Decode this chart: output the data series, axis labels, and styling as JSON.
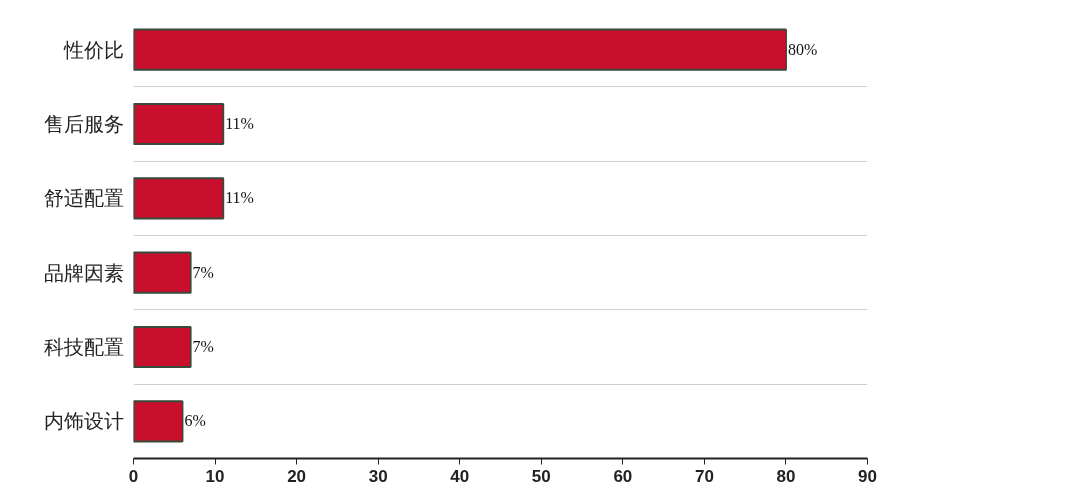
{
  "chart_data": {
    "type": "bar",
    "orientation": "horizontal",
    "categories": [
      "性价比",
      "售后服务",
      "舒适配置",
      "品牌因素",
      "科技配置",
      "内饰设计"
    ],
    "values": [
      80,
      11,
      11,
      7,
      7,
      6
    ],
    "value_labels": [
      "80%",
      "11%",
      "11%",
      "7%",
      "7%",
      "6%"
    ],
    "color": "#c8102e",
    "xlim": [
      0,
      90
    ],
    "xticks": [
      0,
      10,
      20,
      30,
      40,
      50,
      60,
      70,
      80,
      90
    ],
    "grid": "y"
  }
}
